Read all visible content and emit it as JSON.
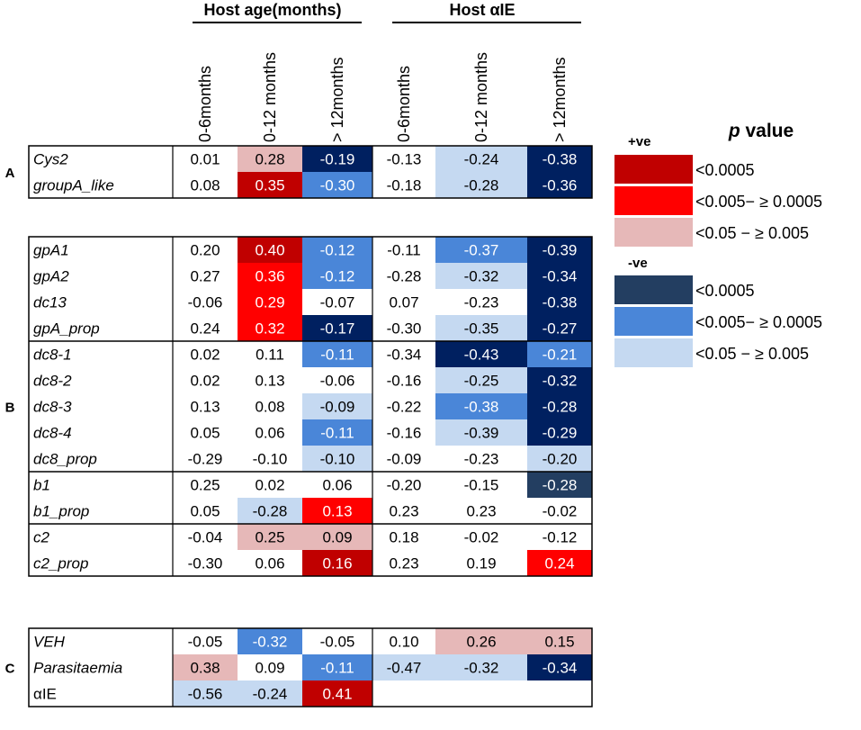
{
  "chart_data": {
    "type": "heatmap",
    "title": "",
    "groups": [
      {
        "name": "Host age(months)",
        "columns": [
          "0-6months",
          "0-12 months",
          "> 12months"
        ]
      },
      {
        "name": "Host αIE",
        "columns": [
          "0-6months",
          "0-12 months",
          "> 12months"
        ]
      }
    ],
    "sections": [
      {
        "label": "A",
        "blocks": [
          {
            "rows": [
              {
                "name": "Cys2",
                "values": [
                  0.01,
                  0.28,
                  -0.19,
                  -0.13,
                  -0.24,
                  -0.38
                ],
                "levels": [
                  "",
                  "p3",
                  "n1",
                  "",
                  "n3",
                  "n1"
                ]
              },
              {
                "name": "groupA_like",
                "values": [
                  0.08,
                  0.35,
                  -0.3,
                  -0.18,
                  -0.28,
                  -0.36
                ],
                "levels": [
                  "",
                  "p1",
                  "n2",
                  "",
                  "n3",
                  "n1"
                ]
              }
            ]
          }
        ]
      },
      {
        "label": "B",
        "blocks": [
          {
            "rows": [
              {
                "name": "gpA1",
                "values": [
                  0.2,
                  0.4,
                  -0.12,
                  -0.11,
                  -0.37,
                  -0.39
                ],
                "levels": [
                  "",
                  "p1",
                  "n2",
                  "",
                  "n2",
                  "n1"
                ]
              },
              {
                "name": "gpA2",
                "values": [
                  0.27,
                  0.36,
                  -0.12,
                  -0.28,
                  -0.32,
                  -0.34
                ],
                "levels": [
                  "",
                  "p2",
                  "n2",
                  "",
                  "n3",
                  "n1"
                ]
              },
              {
                "name": "dc13",
                "values": [
                  -0.06,
                  0.29,
                  -0.07,
                  0.07,
                  -0.23,
                  -0.38
                ],
                "levels": [
                  "",
                  "p2",
                  "",
                  "",
                  "",
                  "n1"
                ]
              },
              {
                "name": "gpA_prop",
                "values": [
                  0.24,
                  0.32,
                  -0.17,
                  -0.3,
                  -0.35,
                  -0.27
                ],
                "levels": [
                  "",
                  "p2",
                  "n1",
                  "",
                  "n3",
                  "n1"
                ]
              }
            ]
          },
          {
            "rows": [
              {
                "name": "dc8-1",
                "values": [
                  0.02,
                  0.11,
                  -0.11,
                  -0.34,
                  -0.43,
                  -0.21
                ],
                "levels": [
                  "",
                  "",
                  "n2",
                  "",
                  "n1",
                  "n2"
                ]
              },
              {
                "name": "dc8-2",
                "values": [
                  0.02,
                  0.13,
                  -0.06,
                  -0.16,
                  -0.25,
                  -0.32
                ],
                "levels": [
                  "",
                  "",
                  "",
                  "",
                  "n3",
                  "n1"
                ]
              },
              {
                "name": "dc8-3",
                "values": [
                  0.13,
                  0.08,
                  -0.09,
                  -0.22,
                  -0.38,
                  -0.28
                ],
                "levels": [
                  "",
                  "",
                  "n3",
                  "",
                  "n2",
                  "n1"
                ]
              },
              {
                "name": "dc8-4",
                "values": [
                  0.05,
                  0.06,
                  -0.11,
                  -0.16,
                  -0.39,
                  -0.29
                ],
                "levels": [
                  "",
                  "",
                  "n2",
                  "",
                  "n3",
                  "n1"
                ]
              },
              {
                "name": "dc8_prop",
                "values": [
                  -0.29,
                  -0.1,
                  -0.1,
                  -0.09,
                  -0.23,
                  -0.2
                ],
                "levels": [
                  "",
                  "",
                  "n3",
                  "",
                  "",
                  "n3"
                ]
              }
            ]
          },
          {
            "rows": [
              {
                "name": "b1",
                "values": [
                  0.25,
                  0.02,
                  0.06,
                  -0.2,
                  -0.15,
                  -0.28
                ],
                "levels": [
                  "",
                  "",
                  "",
                  "",
                  "",
                  "nS"
                ]
              },
              {
                "name": "b1_prop",
                "values": [
                  0.05,
                  -0.28,
                  0.13,
                  0.23,
                  0.23,
                  -0.02
                ],
                "levels": [
                  "",
                  "n3",
                  "p2",
                  "",
                  "",
                  ""
                ]
              }
            ]
          },
          {
            "rows": [
              {
                "name": "c2",
                "values": [
                  -0.04,
                  0.25,
                  0.09,
                  0.18,
                  -0.02,
                  -0.12
                ],
                "levels": [
                  "",
                  "p3",
                  "p3",
                  "",
                  "",
                  ""
                ]
              },
              {
                "name": "c2_prop",
                "values": [
                  -0.3,
                  0.06,
                  0.16,
                  0.23,
                  0.19,
                  0.24
                ],
                "levels": [
                  "",
                  "",
                  "p1",
                  "",
                  "",
                  "p2"
                ]
              }
            ]
          }
        ]
      },
      {
        "label": "C",
        "blocks": [
          {
            "rows": [
              {
                "name": "VEH",
                "values": [
                  -0.05,
                  -0.32,
                  -0.05,
                  0.1,
                  0.26,
                  0.15
                ],
                "levels": [
                  "",
                  "n2",
                  "",
                  "",
                  "p3",
                  "p3"
                ]
              },
              {
                "name": "Parasitaemia",
                "values": [
                  0.38,
                  0.09,
                  -0.11,
                  -0.47,
                  -0.32,
                  -0.34
                ],
                "levels": [
                  "p3",
                  "",
                  "n2",
                  "n3",
                  "n3",
                  "n1"
                ]
              },
              {
                "name": "αIE",
                "values": [
                  -0.56,
                  -0.24,
                  0.41,
                  null,
                  null,
                  null
                ],
                "levels": [
                  "n3",
                  "n3",
                  "p1",
                  "",
                  "",
                  ""
                ]
              }
            ]
          }
        ]
      }
    ],
    "italic_rows": [
      "Cys2",
      "groupA_like",
      "gpA1",
      "gpA2",
      "dc13",
      "gpA_prop",
      "dc8-1",
      "dc8-2",
      "dc8-3",
      "dc8-4",
      "dc8_prop",
      "b1",
      "b1_prop",
      "c2",
      "c2_prop",
      "VEH",
      "Parasitaemia"
    ],
    "colors": {
      "p1": "#C00000",
      "p2": "#FF0000",
      "p3": "#E6B8B8",
      "n1": "#002060",
      "n2": "#4A86D8",
      "n3": "#C5D9F1",
      "nS": "#233E61"
    },
    "dark_text_levels": [
      "p1",
      "p2",
      "n1",
      "n2",
      "nS"
    ],
    "legend": {
      "title_p": "p",
      "title_rest": " value",
      "positive_label": "+ve",
      "negative_label": "-ve",
      "positive": [
        {
          "color": "#C00000",
          "label": "<0.0005"
        },
        {
          "color": "#FF0000",
          "label": "<0.005− ≥ 0.0005"
        },
        {
          "color": "#E6B8B8",
          "label": "<0.05  − ≥ 0.005"
        }
      ],
      "negative": [
        {
          "color": "#233E61",
          "label": "<0.0005"
        },
        {
          "color": "#4A86D8",
          "label": "<0.005− ≥ 0.0005"
        },
        {
          "color": "#C5D9F1",
          "label": "<0.05  − ≥ 0.005"
        }
      ]
    }
  }
}
